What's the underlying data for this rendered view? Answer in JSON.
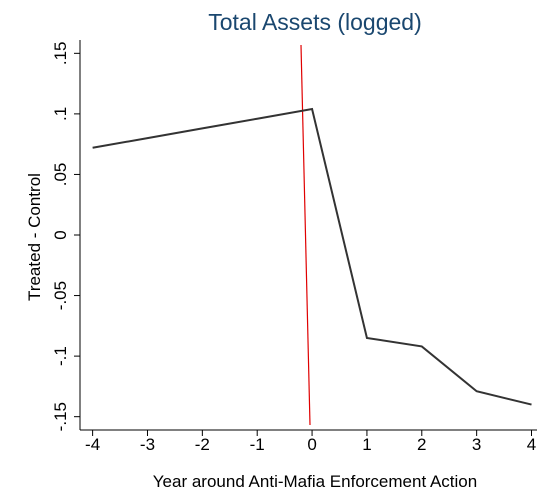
{
  "chart_data": {
    "type": "line",
    "title": "Total Assets (logged)",
    "xlabel": "Year around Anti-Mafia Enforcement Action",
    "ylabel": "Treated - Control",
    "x": [
      -4,
      -3,
      -2,
      -1,
      0,
      1,
      2,
      3,
      4
    ],
    "series": [
      {
        "name": "Treated - Control",
        "color": "#333333",
        "values": [
          0.072,
          0.08,
          0.088,
          0.096,
          0.104,
          -0.085,
          -0.092,
          -0.129,
          -0.14
        ]
      }
    ],
    "xlim": [
      -4.23,
      4.1
    ],
    "ylim": [
      -0.161,
      0.161
    ],
    "xticks": [
      -4,
      -3,
      -2,
      -1,
      0,
      1,
      2,
      3,
      4
    ],
    "yticks": [
      {
        "value": -0.15,
        "label": "-.15"
      },
      {
        "value": -0.1,
        "label": "-.1"
      },
      {
        "value": -0.05,
        "label": "-.05"
      },
      0,
      {
        "value": 0.05,
        "label": ".05"
      },
      {
        "value": 0.1,
        "label": ".1"
      },
      {
        "value": 0.15,
        "label": ".15"
      }
    ],
    "grid": false
  }
}
